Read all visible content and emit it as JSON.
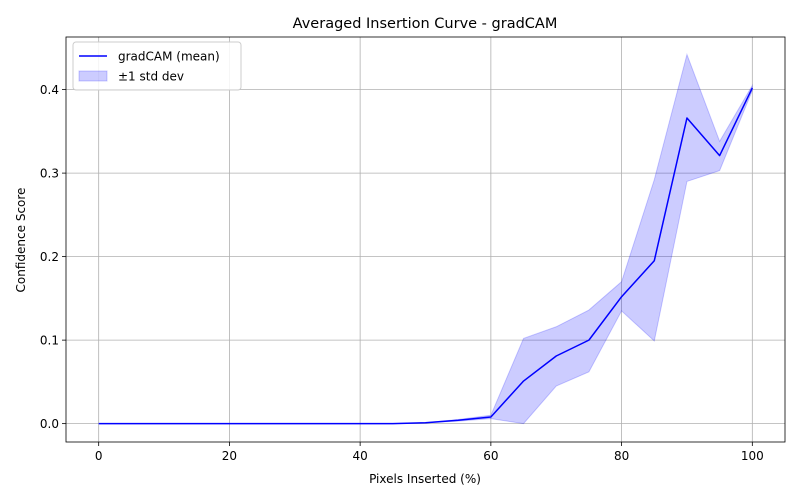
{
  "chart_data": {
    "type": "line",
    "title": "Averaged Insertion Curve - gradCAM",
    "xlabel": "Pixels Inserted (%)",
    "ylabel": "Confidence Score",
    "xlim": [
      -5,
      105
    ],
    "ylim": [
      -0.022,
      0.463
    ],
    "xticks": [
      0,
      20,
      40,
      60,
      80,
      100
    ],
    "yticks": [
      0.0,
      0.1,
      0.2,
      0.3,
      0.4
    ],
    "xtick_labels": [
      "0",
      "20",
      "40",
      "60",
      "80",
      "100"
    ],
    "ytick_labels": [
      "0.0",
      "0.1",
      "0.2",
      "0.3",
      "0.4"
    ],
    "grid": true,
    "legend_position": "top-left",
    "x": [
      0,
      5,
      10,
      15,
      20,
      25,
      30,
      35,
      40,
      45,
      50,
      55,
      60,
      65,
      70,
      75,
      80,
      85,
      90,
      95,
      100
    ],
    "series": [
      {
        "name": "gradCAM (mean)",
        "color": "#0000ff",
        "values": [
          0,
          0,
          0,
          0,
          0,
          0,
          0,
          0,
          0,
          0,
          0.001,
          0.004,
          0.008,
          0.051,
          0.081,
          0.1,
          0.152,
          0.195,
          0.366,
          0.321,
          0.402
        ]
      }
    ],
    "band": {
      "name": "±1 std dev",
      "color": "#0000ff",
      "opacity": 0.2,
      "upper": [
        0,
        0,
        0,
        0,
        0,
        0,
        0,
        0,
        0,
        0,
        0.001,
        0.005,
        0.01,
        0.102,
        0.116,
        0.136,
        0.17,
        0.292,
        0.442,
        0.338,
        0.405
      ],
      "lower": [
        0,
        0,
        0,
        0,
        0,
        0,
        0,
        0,
        0,
        0,
        0.001,
        0.003,
        0.006,
        0.0,
        0.045,
        0.062,
        0.135,
        0.099,
        0.29,
        0.303,
        0.399
      ]
    }
  }
}
